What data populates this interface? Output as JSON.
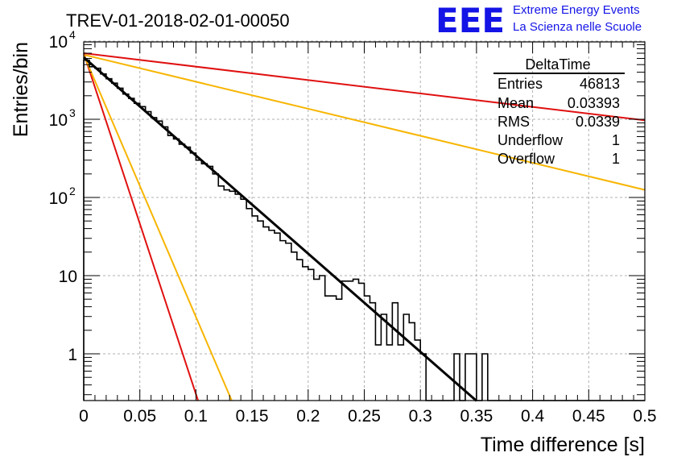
{
  "chart_data": {
    "type": "histogram",
    "title": "TREV-01-2018-02-01-00050",
    "xlabel": "Time difference [s]",
    "ylabel": "Entries/bin",
    "xlim": [
      0,
      0.5
    ],
    "ylim": [
      0.25,
      12000
    ],
    "yscale": "log",
    "grid": true,
    "x_ticks": [
      "0",
      "0.05",
      "0.1",
      "0.15",
      "0.2",
      "0.25",
      "0.3",
      "0.35",
      "0.4",
      "0.45",
      "0.5"
    ],
    "y_ticks": [
      {
        "value": 1,
        "label": "1"
      },
      {
        "value": 10,
        "label": "10"
      },
      {
        "value": 100,
        "base": "10",
        "exp": "2"
      },
      {
        "value": 1000,
        "base": "10",
        "exp": "3"
      },
      {
        "value": 10000,
        "base": "10",
        "exp": "4"
      }
    ],
    "histogram": {
      "bin_width": 0.005,
      "color": "#000000",
      "values": [
        5700,
        4700,
        4500,
        3800,
        3300,
        2900,
        2500,
        2100,
        1850,
        1600,
        1450,
        1250,
        1050,
        950,
        800,
        620,
        560,
        480,
        440,
        370,
        300,
        270,
        250,
        200,
        140,
        125,
        120,
        110,
        95,
        72,
        58,
        50,
        42,
        38,
        35,
        28,
        26,
        20,
        16,
        13,
        12,
        9,
        10,
        5.5,
        5.5,
        5,
        8.5,
        8.5,
        9,
        8,
        5.5,
        4.5,
        1.3,
        3.2,
        1.3,
        4.5,
        1.3,
        3.2,
        2.5,
        1.5,
        1,
        0,
        0,
        0,
        0,
        0,
        1,
        0,
        1,
        1,
        0,
        1,
        0,
        0,
        0,
        0,
        0,
        0,
        0,
        0,
        0,
        0,
        0,
        0,
        0,
        0,
        0,
        0,
        0,
        0,
        0,
        0,
        0,
        0,
        0,
        0,
        0,
        0,
        0,
        0
      ]
    },
    "series": [
      {
        "type": "fit-line",
        "color": "#000000",
        "x": [
          0,
          0.35
        ],
        "y": [
          6200,
          0.25
        ]
      },
      {
        "type": "line",
        "color": "#e01010",
        "x": [
          0,
          0.5
        ],
        "y": [
          7000,
          970
        ]
      },
      {
        "type": "line",
        "color": "#f7b500",
        "x": [
          0,
          0.5
        ],
        "y": [
          6700,
          125
        ]
      },
      {
        "type": "line",
        "color": "#e01010",
        "x": [
          0,
          0.102
        ],
        "y": [
          7000,
          0.25
        ]
      },
      {
        "type": "line",
        "color": "#f7b500",
        "x": [
          0,
          0.132
        ],
        "y": [
          6700,
          0.25
        ]
      }
    ],
    "stats": {
      "title": "DeltaTime",
      "rows": [
        {
          "label": "Entries",
          "value": "46813"
        },
        {
          "label": "Mean",
          "value": "0.03393"
        },
        {
          "label": "RMS",
          "value": "0.0339"
        },
        {
          "label": "Underflow",
          "value": "1"
        },
        {
          "label": "Overflow",
          "value": "1"
        }
      ]
    }
  },
  "logo": {
    "mark": "EEE",
    "line1": "Extreme Energy Events",
    "line2": "La Scienza nelle Scuole"
  }
}
